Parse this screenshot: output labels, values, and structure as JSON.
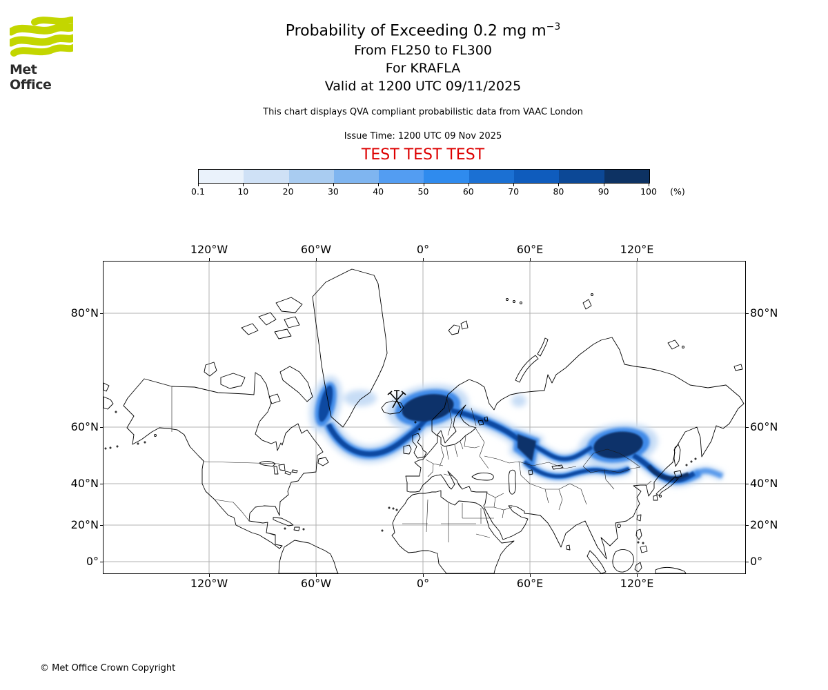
{
  "logo": {
    "text": "Met Office"
  },
  "header": {
    "title_main": "Probability of Exceeding 0.2 mg m",
    "title_sup": "−3",
    "subtitle1": "From FL250 to FL300",
    "subtitle2": "For KRAFLA",
    "subtitle3": "Valid at 1200 UTC 09/11/2025",
    "note": "This chart displays QVA compliant probabilistic data from VAAC London",
    "issue_time": "Issue Time: 1200 UTC 09 Nov 2025",
    "test_banner": "TEST TEST TEST"
  },
  "legend": {
    "tick_labels": [
      "0.1",
      "10",
      "20",
      "30",
      "40",
      "50",
      "60",
      "70",
      "80",
      "90",
      "100"
    ],
    "unit": "(%)",
    "colors": [
      "#eaf2fb",
      "#cfe1f6",
      "#a9ccf1",
      "#7fb5f0",
      "#539df2",
      "#2f8bee",
      "#1b70d3",
      "#0f5cbd",
      "#0c4896",
      "#0d3263"
    ]
  },
  "map": {
    "lon_labels": [
      "120°W",
      "60°W",
      "0°",
      "60°E",
      "120°E"
    ],
    "lat_labels": [
      "80°N",
      "60°N",
      "40°N",
      "20°N",
      "0°"
    ],
    "marker": "volcano eruption site (KRAFLA, Iceland)"
  },
  "footer": {
    "copyright": "© Met Office Crown Copyright"
  },
  "colors": {
    "test_red": "#dd0000",
    "logo_green": "#c3d600",
    "grid": "#b0b0b0",
    "plume_halo": "#c7ddf6",
    "plume_mid": "#3f8ae8",
    "plume_core": "#0d4aa1",
    "plume_darkest": "#08306b"
  }
}
